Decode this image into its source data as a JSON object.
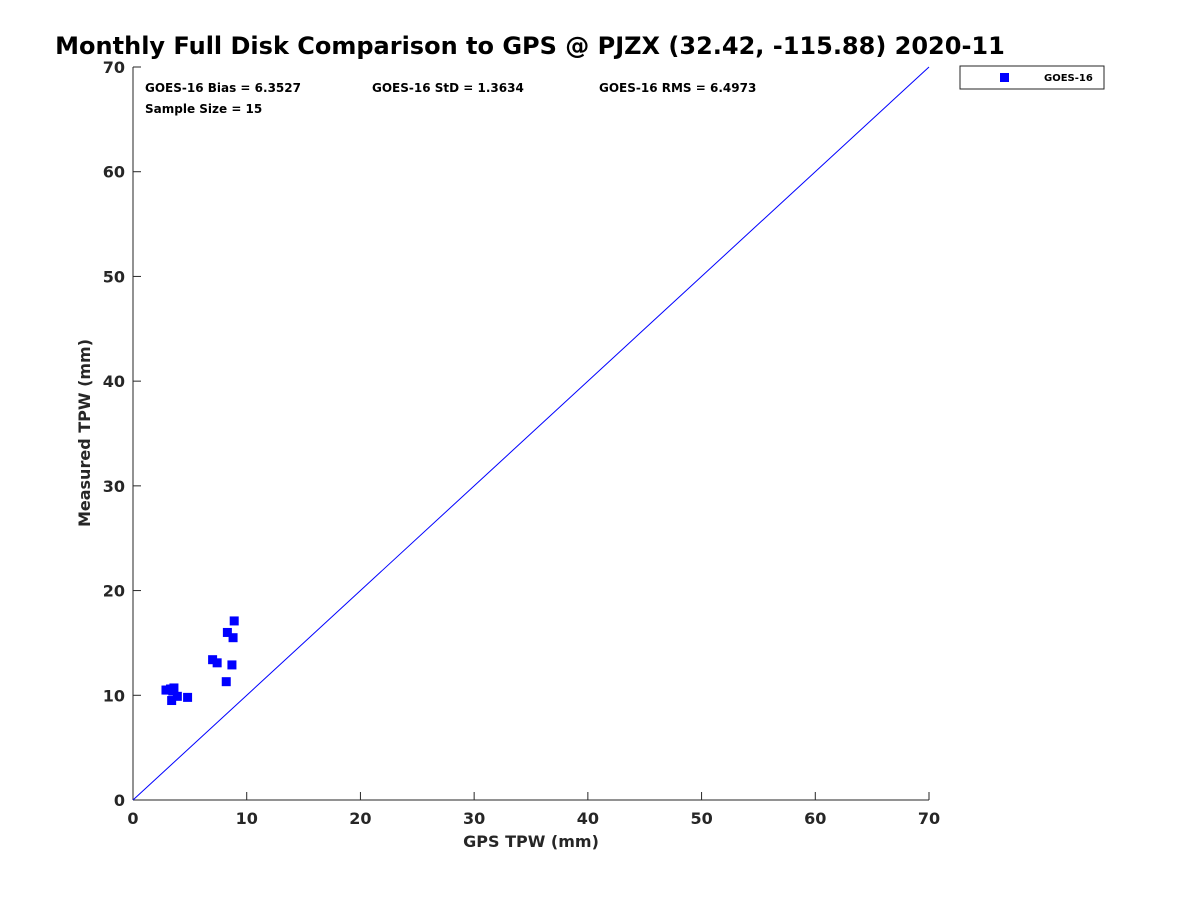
{
  "chart_data": {
    "type": "scatter",
    "title": "Monthly Full Disk Comparison to GPS @ PJZX (32.42, -115.88) 2020-11",
    "xlabel": "GPS TPW (mm)",
    "ylabel": "Measured TPW (mm)",
    "xlim": [
      0,
      70
    ],
    "ylim": [
      0,
      70
    ],
    "xticks": [
      0,
      10,
      20,
      30,
      40,
      50,
      60,
      70
    ],
    "yticks": [
      0,
      10,
      20,
      30,
      40,
      50,
      60,
      70
    ],
    "grid": false,
    "legend_position": "top-right, outside plot area",
    "reference_line": {
      "x": [
        0,
        70
      ],
      "y": [
        0,
        70
      ],
      "color": "#0000ff"
    },
    "annotations": {
      "bias": "GOES-16 Bias = 6.3527",
      "std": "GOES-16 StD = 1.3634",
      "rms": "GOES-16 RMS = 6.4973",
      "sample_size": "Sample Size = 15"
    },
    "series": [
      {
        "name": "GOES-16",
        "color": "#0000ff",
        "marker": "square",
        "x": [
          2.9,
          3.3,
          3.6,
          3.4,
          3.9,
          4.8,
          7.0,
          7.4,
          8.2,
          8.7,
          8.3,
          8.8,
          8.9,
          3.5,
          3.0
        ],
        "y": [
          10.5,
          10.6,
          10.7,
          9.5,
          9.9,
          9.8,
          13.4,
          13.1,
          11.3,
          12.9,
          16.0,
          15.5,
          17.1,
          10.4,
          10.5
        ]
      }
    ]
  }
}
